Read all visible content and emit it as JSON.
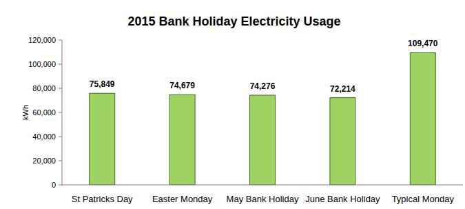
{
  "chart_data": {
    "type": "bar",
    "title": "2015 Bank Holiday Electricity Usage",
    "ylabel": "kWh",
    "categories": [
      "St Patricks Day",
      "Easter Monday",
      "May Bank Holiday",
      "June Bank Holiday",
      "Typical Monday"
    ],
    "values": [
      75849,
      74679,
      74276,
      72214,
      109470
    ],
    "value_labels": [
      "75,849",
      "74,679",
      "74,276",
      "72,214",
      "109,470"
    ],
    "color": "#9fd463",
    "ylim": [
      0,
      120000
    ],
    "yticks": [
      0,
      {
        "value": 20000,
        "label": "20,000"
      },
      {
        "value": 40000,
        "label": "40,000"
      },
      {
        "value": 60000,
        "label": "60,000"
      },
      {
        "value": 80000,
        "label": "80,000"
      },
      {
        "value": 100000,
        "label": "100,000"
      },
      {
        "value": 120000,
        "label": "120,000"
      }
    ],
    "grid": false,
    "data_labels": true
  }
}
